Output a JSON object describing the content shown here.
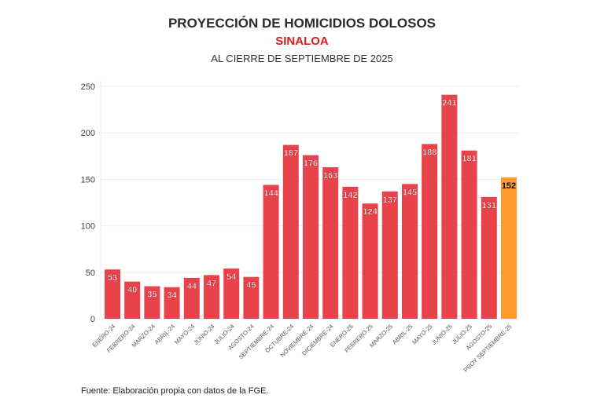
{
  "chart_data": {
    "type": "bar",
    "title": "PROYECCIÓN DE HOMICIDIOS DOLOSOS",
    "subtitle": "SINALOA",
    "subtitle2": "AL CIERRE DE SEPTIEMBRE DE 2025",
    "xlabel": "",
    "ylabel": "",
    "ylim": [
      0,
      250
    ],
    "yticks": [
      0,
      50,
      100,
      150,
      200,
      250
    ],
    "grid": true,
    "categories": [
      "ENERO-24",
      "FEBRERO-24",
      "MARZO-24",
      "ABRIL-24",
      "MAYO-24",
      "JUNIO-24",
      "JULIO-24",
      "AGOSTO-24",
      "SEPTIEMBRE-24",
      "OCTUBRE-24",
      "NOVIEMBRE-24",
      "DICIEMBRE-24",
      "ENERO-25",
      "FEBRERO-25",
      "MARZO-25",
      "ABRIL-25",
      "MAYO-25",
      "JUNIO-25",
      "JULIO-25",
      "AGOSTO-25",
      "PROY SEPTIEMBRE-25"
    ],
    "values": [
      53,
      40,
      35,
      34,
      44,
      47,
      54,
      45,
      144,
      187,
      176,
      163,
      142,
      124,
      137,
      145,
      188,
      241,
      181,
      131,
      152
    ],
    "colors": {
      "actual": "#e8434a",
      "projection": "#ff9a2e"
    },
    "source": "Fuente: Elaboración propia con datos de la FGE."
  }
}
